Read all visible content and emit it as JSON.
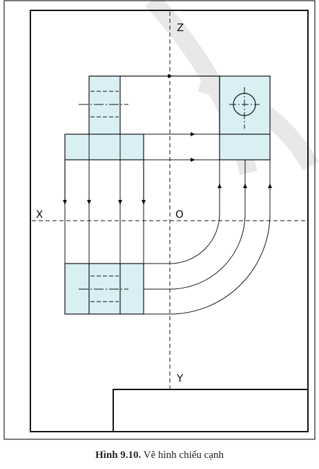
{
  "axes": {
    "z_label": "Z",
    "x_label": "X",
    "origin_label": "O",
    "y_label": "Y"
  },
  "caption": {
    "number": "Hình 9.10.",
    "text": " Vẽ hình chiếu cạnh"
  },
  "colors": {
    "fill": "#d9eff4",
    "stroke": "#111111",
    "watermark": "#e6e6e6"
  }
}
